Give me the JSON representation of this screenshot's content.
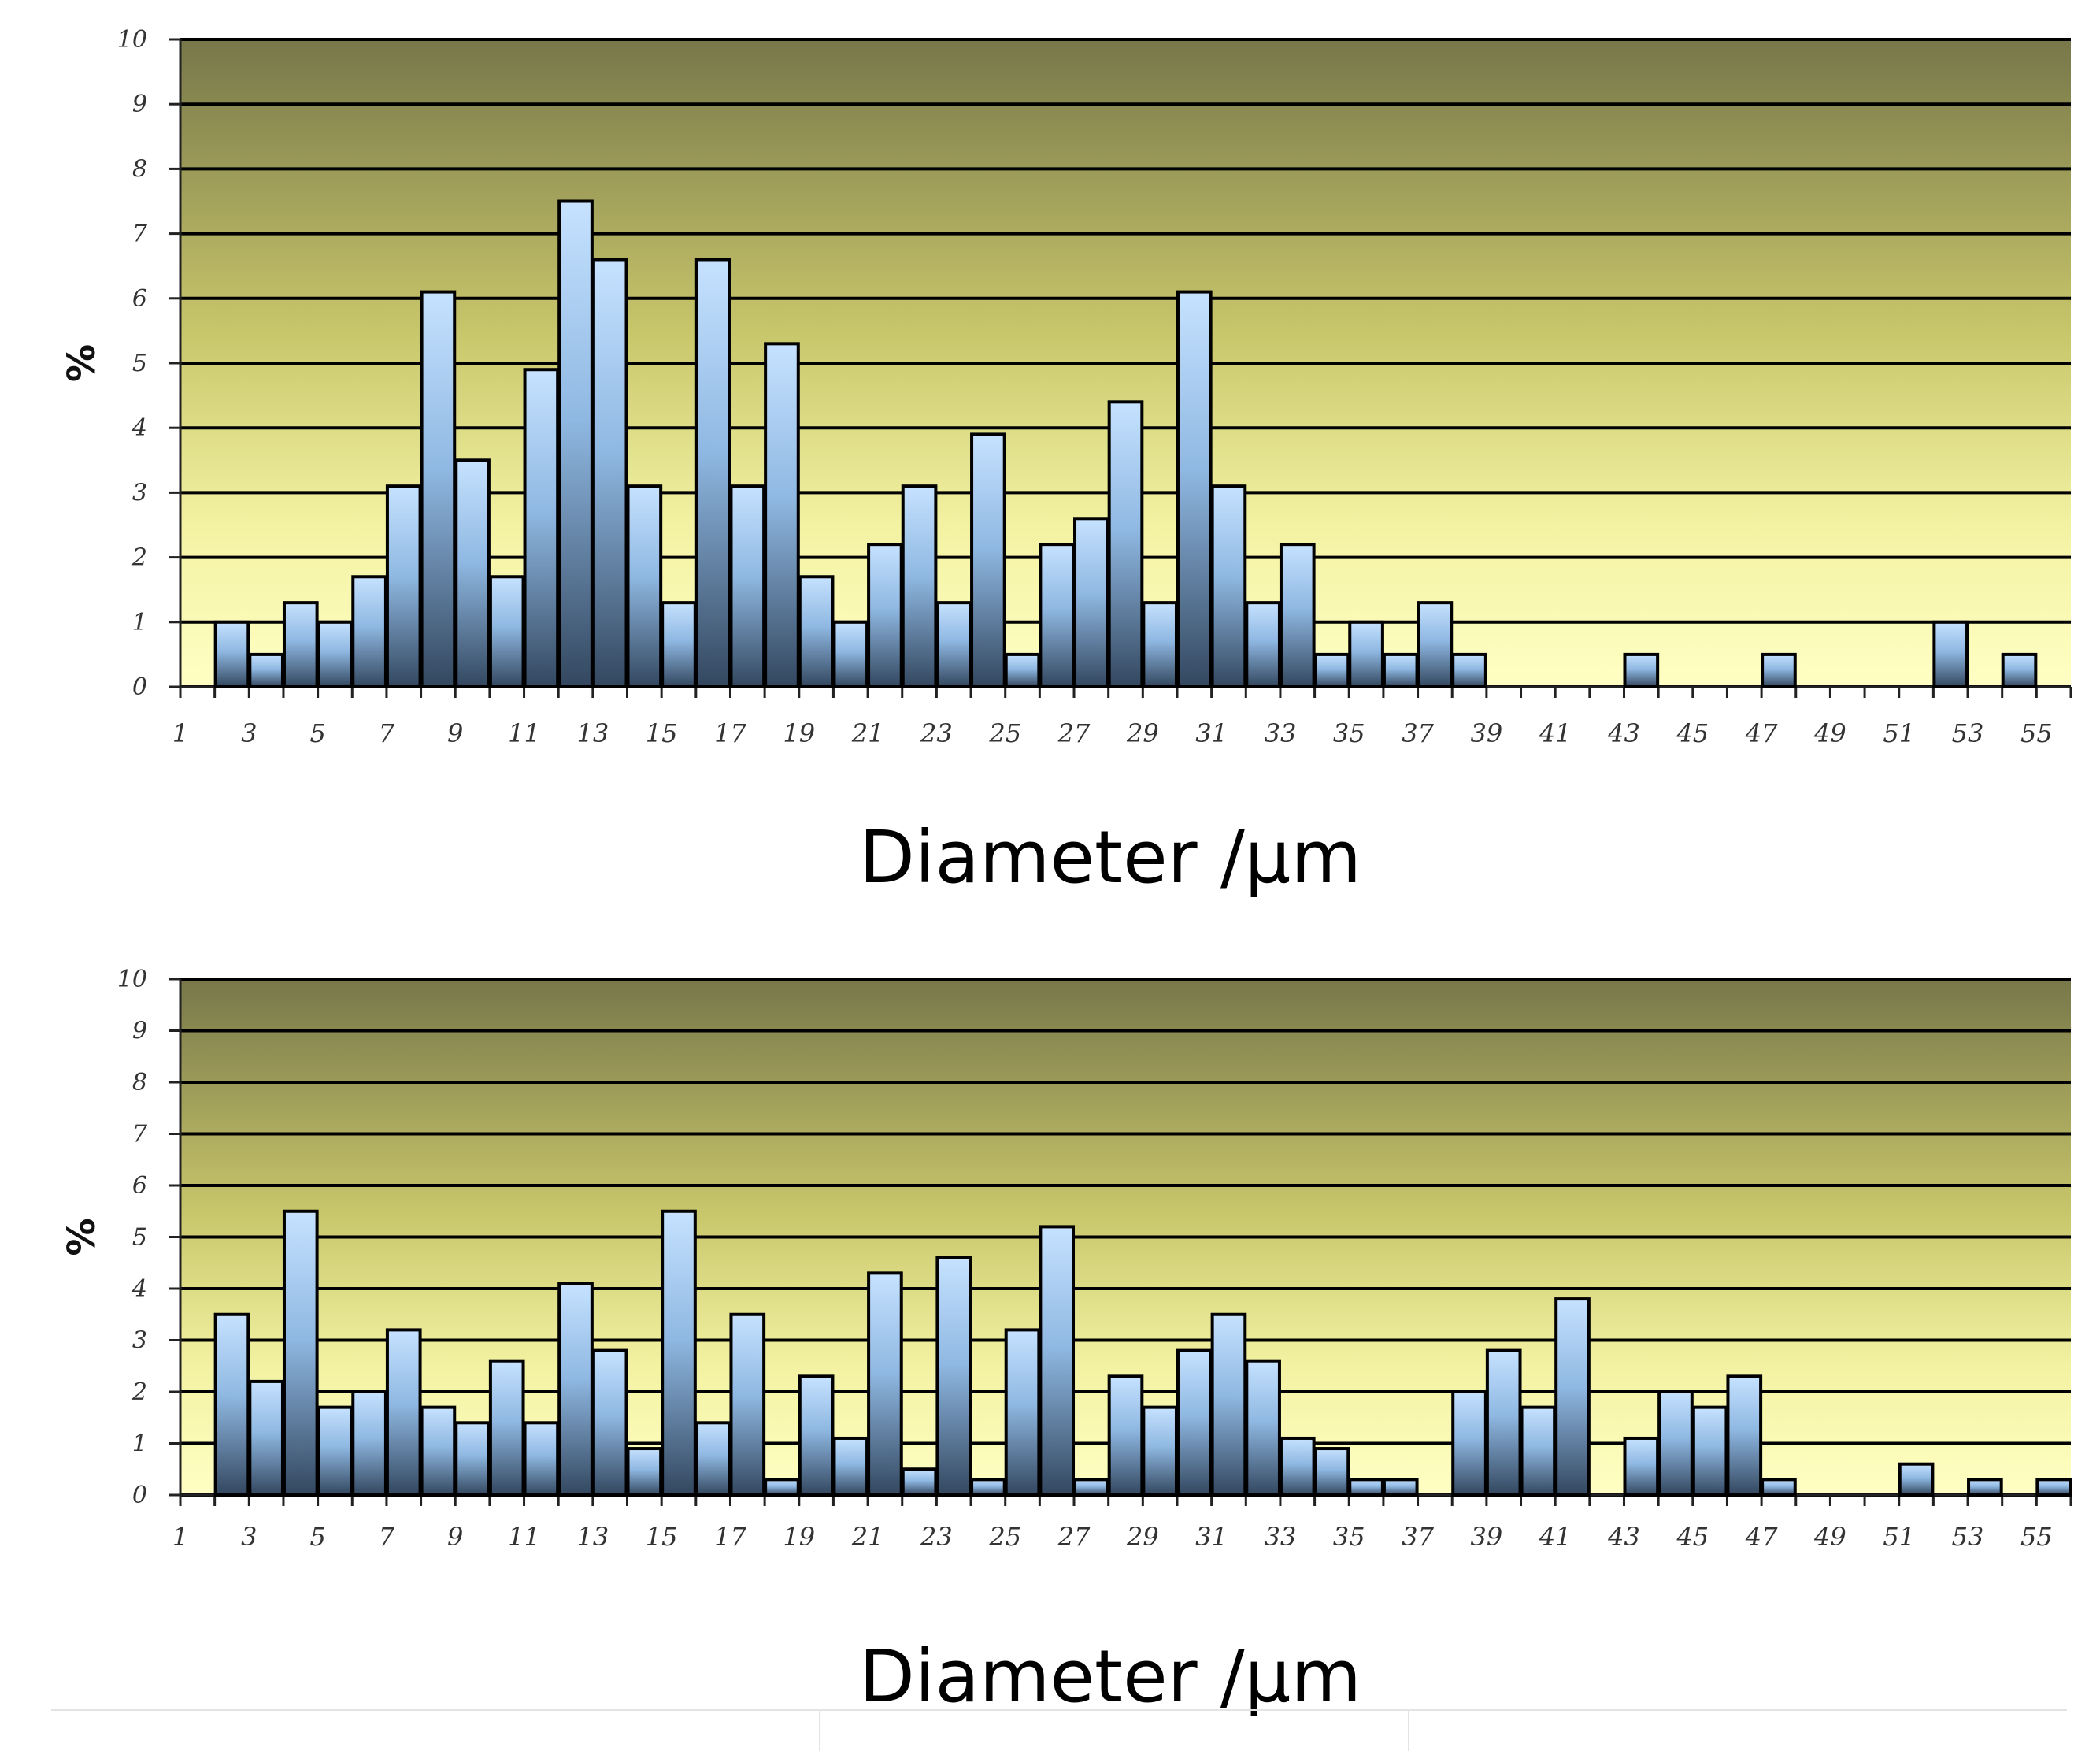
{
  "chart_data": [
    {
      "type": "bar",
      "title": "",
      "xlabel": "Diameter /µm",
      "ylabel": "%",
      "ylim": [
        0,
        10
      ],
      "yticks": [
        0,
        1,
        2,
        3,
        4,
        5,
        6,
        7,
        8,
        9,
        10
      ],
      "xtick_labels": [
        "1",
        "3",
        "5",
        "7",
        "9",
        "11",
        "13",
        "15",
        "17",
        "19",
        "21",
        "23",
        "25",
        "27",
        "29",
        "31",
        "33",
        "35",
        "37",
        "39",
        "41",
        "43",
        "45",
        "47",
        "49",
        "51",
        "53",
        "55"
      ],
      "categories": [
        "1",
        "2",
        "3",
        "4",
        "5",
        "6",
        "7",
        "8",
        "9",
        "10",
        "11",
        "12",
        "13",
        "14",
        "15",
        "16",
        "17",
        "18",
        "19",
        "20",
        "21",
        "22",
        "23",
        "24",
        "25",
        "26",
        "27",
        "28",
        "29",
        "30",
        "31",
        "32",
        "33",
        "34",
        "35",
        "36",
        "37",
        "38",
        "39",
        "40",
        "41",
        "42",
        "43",
        "44",
        "45",
        "46",
        "47",
        "48",
        "49",
        "50",
        "51",
        "52",
        "53",
        "54",
        "55"
      ],
      "values": [
        0,
        1.0,
        0.5,
        1.3,
        1.0,
        1.7,
        3.1,
        6.1,
        3.5,
        1.7,
        4.9,
        7.5,
        6.6,
        3.1,
        1.3,
        6.6,
        3.1,
        5.3,
        1.7,
        1.0,
        2.2,
        3.1,
        1.3,
        3.9,
        0.5,
        2.2,
        2.6,
        4.4,
        1.3,
        6.1,
        3.1,
        1.3,
        2.2,
        0.5,
        1.0,
        0.5,
        1.3,
        0.5,
        0,
        0,
        0,
        0,
        0.5,
        0,
        0,
        0,
        0.5,
        0,
        0,
        0,
        0,
        1.0,
        0,
        0.5,
        0
      ],
      "grid": true,
      "legend": "none"
    },
    {
      "type": "bar",
      "title": "",
      "xlabel": "Diameter /µm",
      "ylabel": "%",
      "ylim": [
        0,
        10
      ],
      "yticks": [
        0,
        1,
        2,
        3,
        4,
        5,
        6,
        7,
        8,
        9,
        10
      ],
      "xtick_labels": [
        "1",
        "3",
        "5",
        "7",
        "9",
        "11",
        "13",
        "15",
        "17",
        "19",
        "21",
        "23",
        "25",
        "27",
        "29",
        "31",
        "33",
        "35",
        "37",
        "39",
        "41",
        "43",
        "45",
        "47",
        "49",
        "51",
        "53",
        "55"
      ],
      "categories": [
        "1",
        "2",
        "3",
        "4",
        "5",
        "6",
        "7",
        "8",
        "9",
        "10",
        "11",
        "12",
        "13",
        "14",
        "15",
        "16",
        "17",
        "18",
        "19",
        "20",
        "21",
        "22",
        "23",
        "24",
        "25",
        "26",
        "27",
        "28",
        "29",
        "30",
        "31",
        "32",
        "33",
        "34",
        "35",
        "36",
        "37",
        "38",
        "39",
        "40",
        "41",
        "42",
        "43",
        "44",
        "45",
        "46",
        "47",
        "48",
        "49",
        "50",
        "51",
        "52",
        "53",
        "54",
        "55"
      ],
      "values": [
        0,
        3.5,
        2.2,
        5.5,
        1.7,
        2.0,
        3.2,
        1.7,
        1.4,
        2.6,
        1.4,
        4.1,
        2.8,
        0.9,
        5.5,
        1.4,
        3.5,
        0.3,
        2.3,
        1.1,
        4.3,
        0.5,
        4.6,
        0.3,
        3.2,
        5.2,
        0.3,
        2.3,
        1.7,
        2.8,
        3.5,
        2.6,
        1.1,
        0.9,
        0.3,
        0.3,
        0,
        2.0,
        2.8,
        1.7,
        3.8,
        0,
        1.1,
        2.0,
        1.7,
        2.3,
        0.3,
        0,
        0,
        0,
        0.6,
        0,
        0.3,
        0,
        0.3
      ],
      "grid": true,
      "legend": "none"
    }
  ]
}
